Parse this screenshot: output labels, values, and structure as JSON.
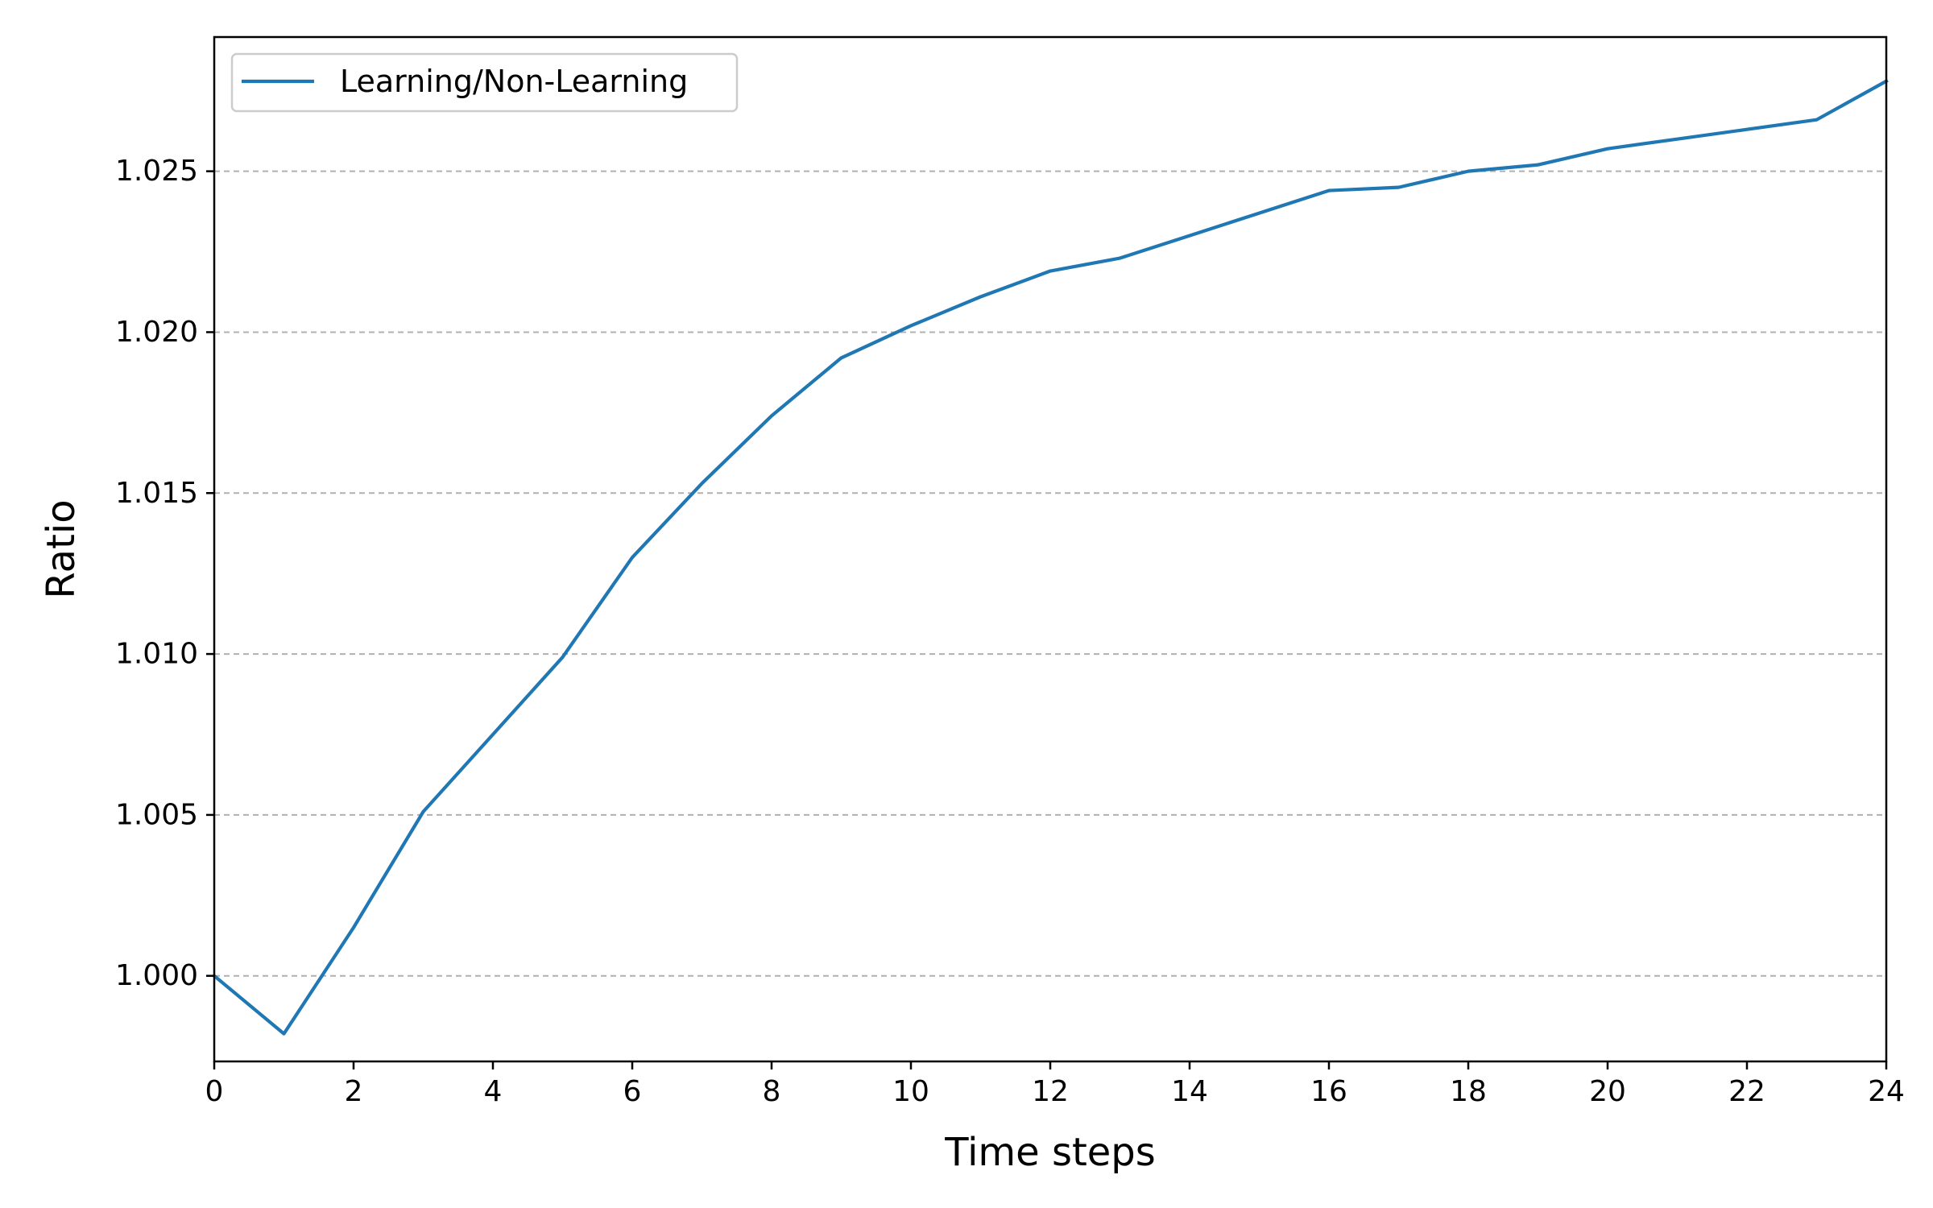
{
  "chart_data": {
    "type": "line",
    "title": "",
    "xlabel": "Time steps",
    "ylabel": "Ratio",
    "xlim": [
      0,
      24
    ],
    "ylim": [
      0.99734,
      1.02917
    ],
    "x_ticks": [
      0,
      2,
      4,
      6,
      8,
      10,
      12,
      14,
      16,
      18,
      20,
      22,
      24
    ],
    "x_tick_labels": [
      "0",
      "2",
      "4",
      "6",
      "8",
      "10",
      "12",
      "14",
      "16",
      "18",
      "20",
      "22",
      "24"
    ],
    "y_ticks": [
      1.0,
      1.005,
      1.01,
      1.015,
      1.02,
      1.025
    ],
    "y_tick_labels": [
      "1.000",
      "1.005",
      "1.010",
      "1.015",
      "1.020",
      "1.025"
    ],
    "grid": "horizontal dashed",
    "legend_position": "upper-left",
    "series": [
      {
        "name": "Learning/Non-Learning",
        "color": "#1f77b4",
        "x": [
          0,
          1,
          2,
          3,
          4,
          5,
          6,
          7,
          8,
          9,
          10,
          11,
          12,
          13,
          14,
          15,
          16,
          17,
          18,
          19,
          20,
          21,
          22,
          23,
          24
        ],
        "y": [
          1.0,
          0.9982,
          1.0015,
          1.0051,
          1.0075,
          1.0099,
          1.013,
          1.0153,
          1.0174,
          1.0192,
          1.0202,
          1.0211,
          1.0219,
          1.0223,
          1.023,
          1.0237,
          1.0244,
          1.0245,
          1.025,
          1.0252,
          1.0257,
          1.026,
          1.0263,
          1.0266,
          1.0278
        ]
      }
    ]
  }
}
